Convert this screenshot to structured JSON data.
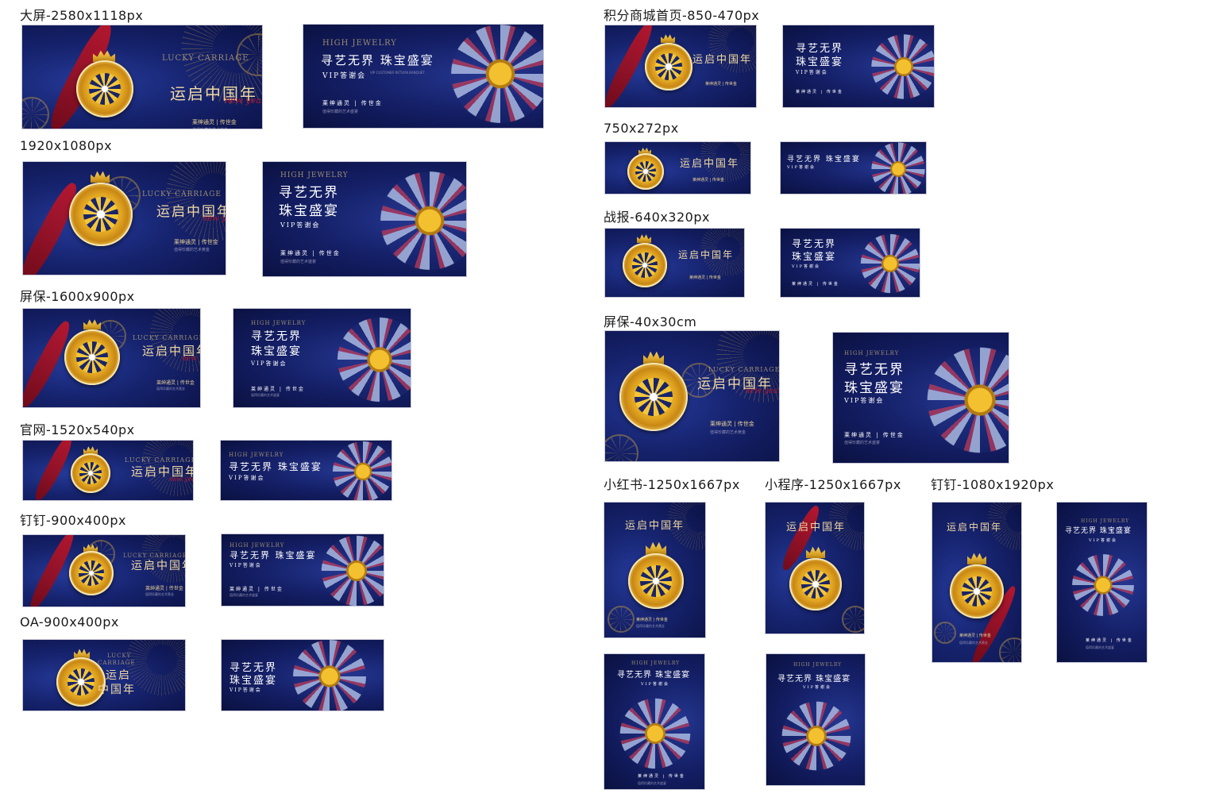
{
  "labels": {
    "big_screen": "大屏-2580x1118px",
    "s1920": "1920x1080px",
    "screensaver_1600": "屏保-1600x900px",
    "website": "官网-1520x540px",
    "dingtalk_900": "钉钉-900x400px",
    "oa": "OA-900x400px",
    "points_mall": "积分商城首页-850-470px",
    "s750": "750x272px",
    "battle_report": "战报-640x320px",
    "screensaver_cm": "屏保-40x30cm",
    "xiaohongshu": "小红书-1250x1667px",
    "mini_program": "小程序-1250x1667px",
    "dingtalk_1080": "钉钉-1080x1920px"
  },
  "poster_a": {
    "title": "运启中国年",
    "title_short": "运启",
    "title_short2": "中国年",
    "en_title": "LUCKY CARRIAGE",
    "en_line1": "LUCKY",
    "en_line2": "CARRIAGE",
    "script": "new year",
    "brand": "莱绅通灵 | 传世金",
    "slogan": "值得珍藏的艺术黄金"
  },
  "poster_b": {
    "en_title": "HIGH JEWELRY",
    "title": "寻艺无界  珠宝盛宴",
    "title_line1": "寻艺无界",
    "title_line2": "珠宝盛宴",
    "vip": "VIP答谢会",
    "vip_en": "VIP CUSTOMER RETURN BANQUET",
    "brand": "莱绅通灵 | 传世金",
    "slogan": "值得珍藏的艺术盛宴"
  },
  "colors": {
    "navy": "#16236e",
    "gold": "#f1b82b",
    "ribbon_red": "#c4162a",
    "title_gold": "#f0d9a4"
  }
}
